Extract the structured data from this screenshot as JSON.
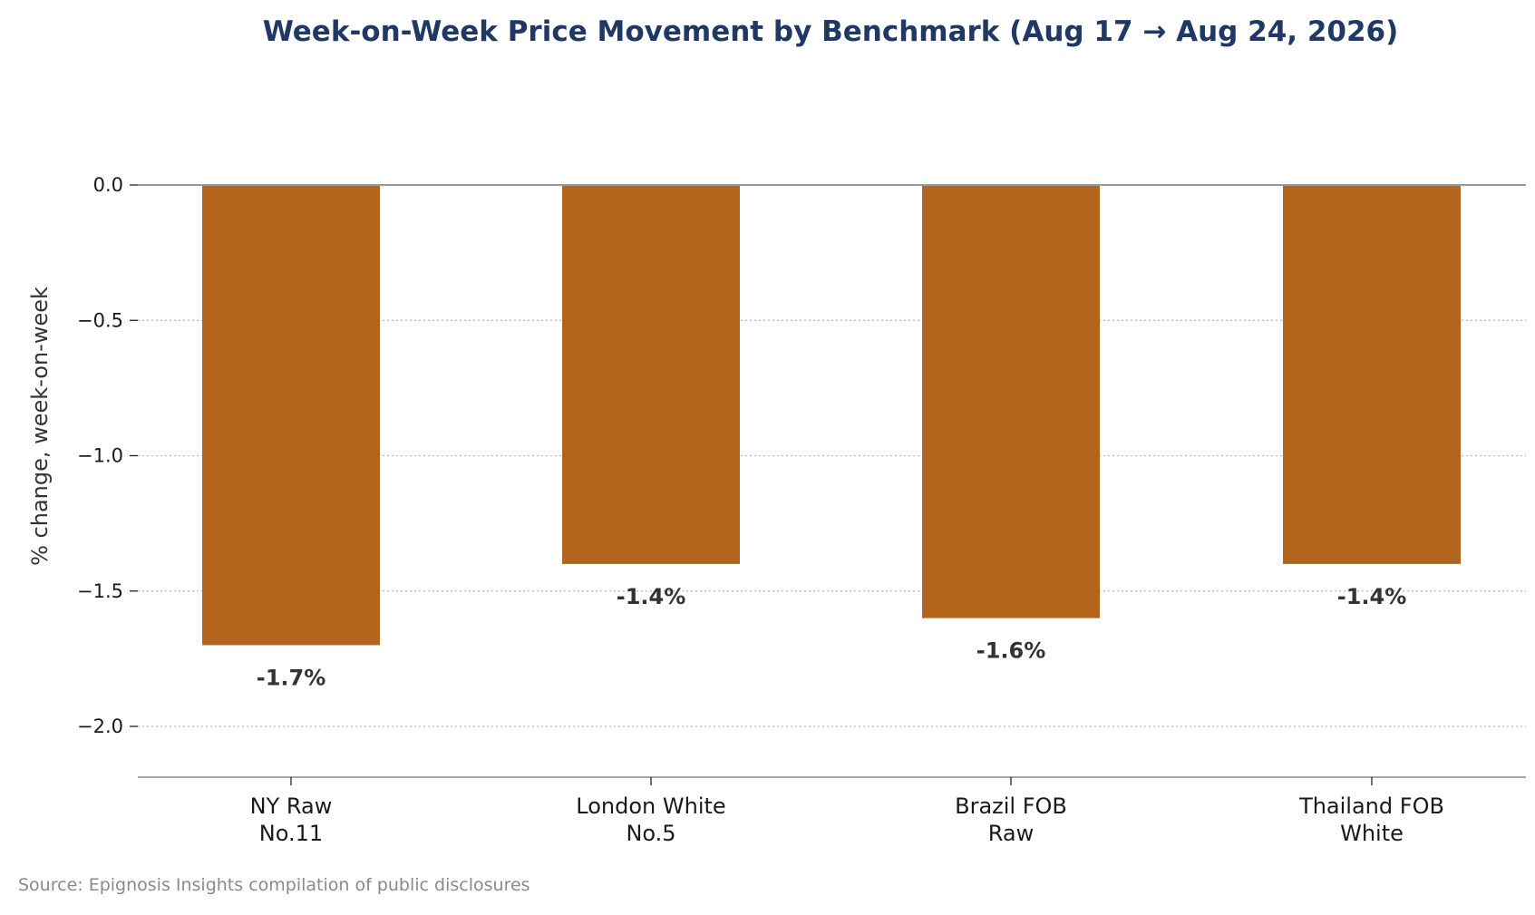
{
  "chart_data": {
    "type": "bar",
    "title": "Week-on-Week Price Movement by Benchmark (Aug 17 → Aug 24, 2026)",
    "xlabel": "",
    "ylabel": "% change, week-on-week",
    "categories": [
      [
        "NY Raw",
        "No.11"
      ],
      [
        "London White",
        "No.5"
      ],
      [
        "Brazil FOB",
        "Raw"
      ],
      [
        "Thailand FOB",
        "White"
      ]
    ],
    "values": [
      -1.7,
      -1.4,
      -1.6,
      -1.4
    ],
    "data_labels": [
      "-1.7%",
      "-1.4%",
      "-1.6%",
      "-1.4%"
    ],
    "yticks": [
      0.0,
      -0.5,
      -1.0,
      -1.5,
      -2.0
    ],
    "ytick_labels": [
      "0.0",
      "−0.5",
      "−1.0",
      "−1.5",
      "−2.0"
    ],
    "ylim": [
      -2.2,
      0.0
    ],
    "grid": "horizontal dotted",
    "legend": "none",
    "bar_color": "#b3651e",
    "source_note": "Source: Epignosis Insights compilation of public disclosures"
  }
}
